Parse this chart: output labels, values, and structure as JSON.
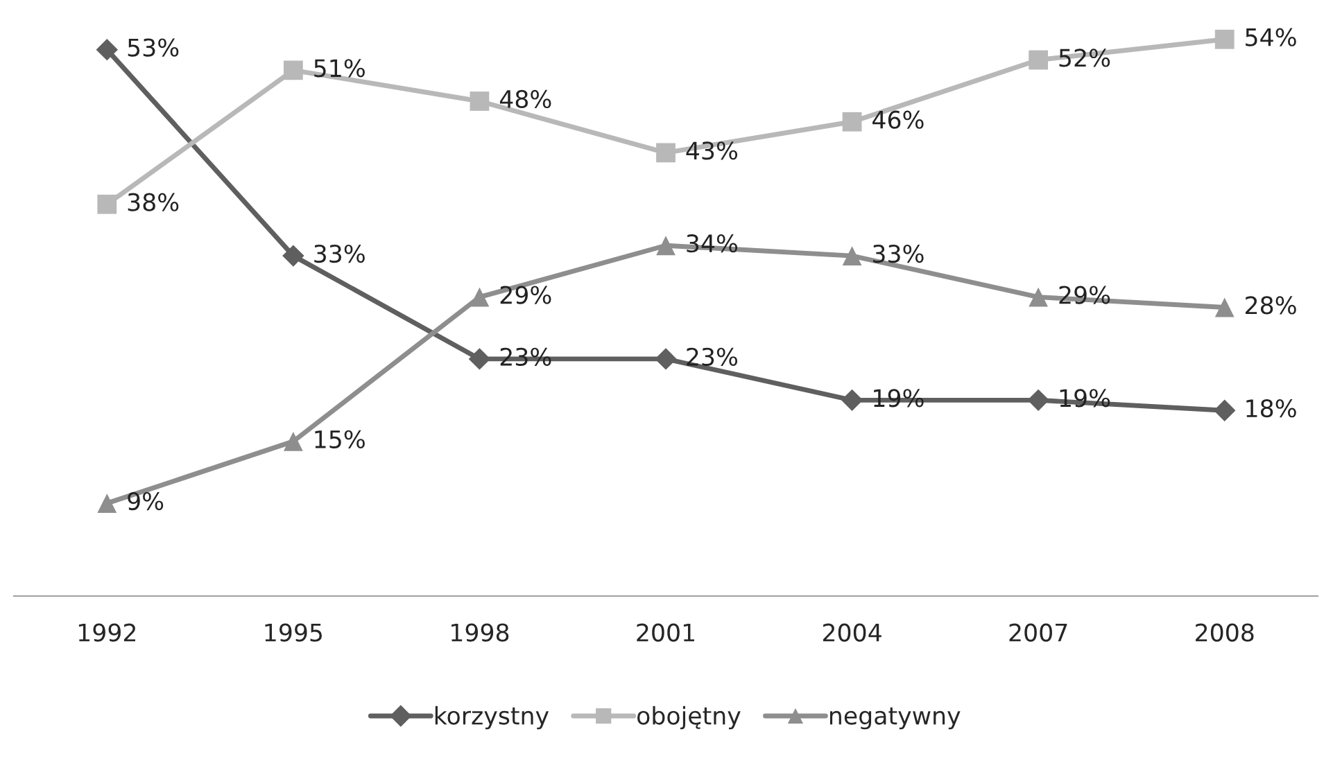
{
  "chart_data": {
    "type": "line",
    "categories": [
      "1992",
      "1995",
      "1998",
      "2001",
      "2004",
      "2007",
      "2008"
    ],
    "series": [
      {
        "name": "korzystny",
        "color": "#5f5f5f",
        "marker": "diamond",
        "values": [
          53,
          33,
          23,
          23,
          19,
          19,
          18
        ],
        "value_labels": [
          "53%",
          "33%",
          "23%",
          "23%",
          "19%",
          "19%",
          "18%"
        ]
      },
      {
        "name": "obojętny",
        "color": "#b8b8b8",
        "marker": "square",
        "values": [
          38,
          51,
          48,
          43,
          46,
          52,
          54
        ],
        "value_labels": [
          "38%",
          "51%",
          "48%",
          "43%",
          "46%",
          "52%",
          "54%"
        ]
      },
      {
        "name": "negatywny",
        "color": "#8e8e8e",
        "marker": "triangle",
        "values": [
          9,
          15,
          29,
          34,
          33,
          29,
          28
        ],
        "value_labels": [
          "9%",
          "15%",
          "29%",
          "34%",
          "33%",
          "29%",
          "28%"
        ]
      }
    ],
    "legend": "bottom",
    "grid": false,
    "line_style": "solid"
  }
}
